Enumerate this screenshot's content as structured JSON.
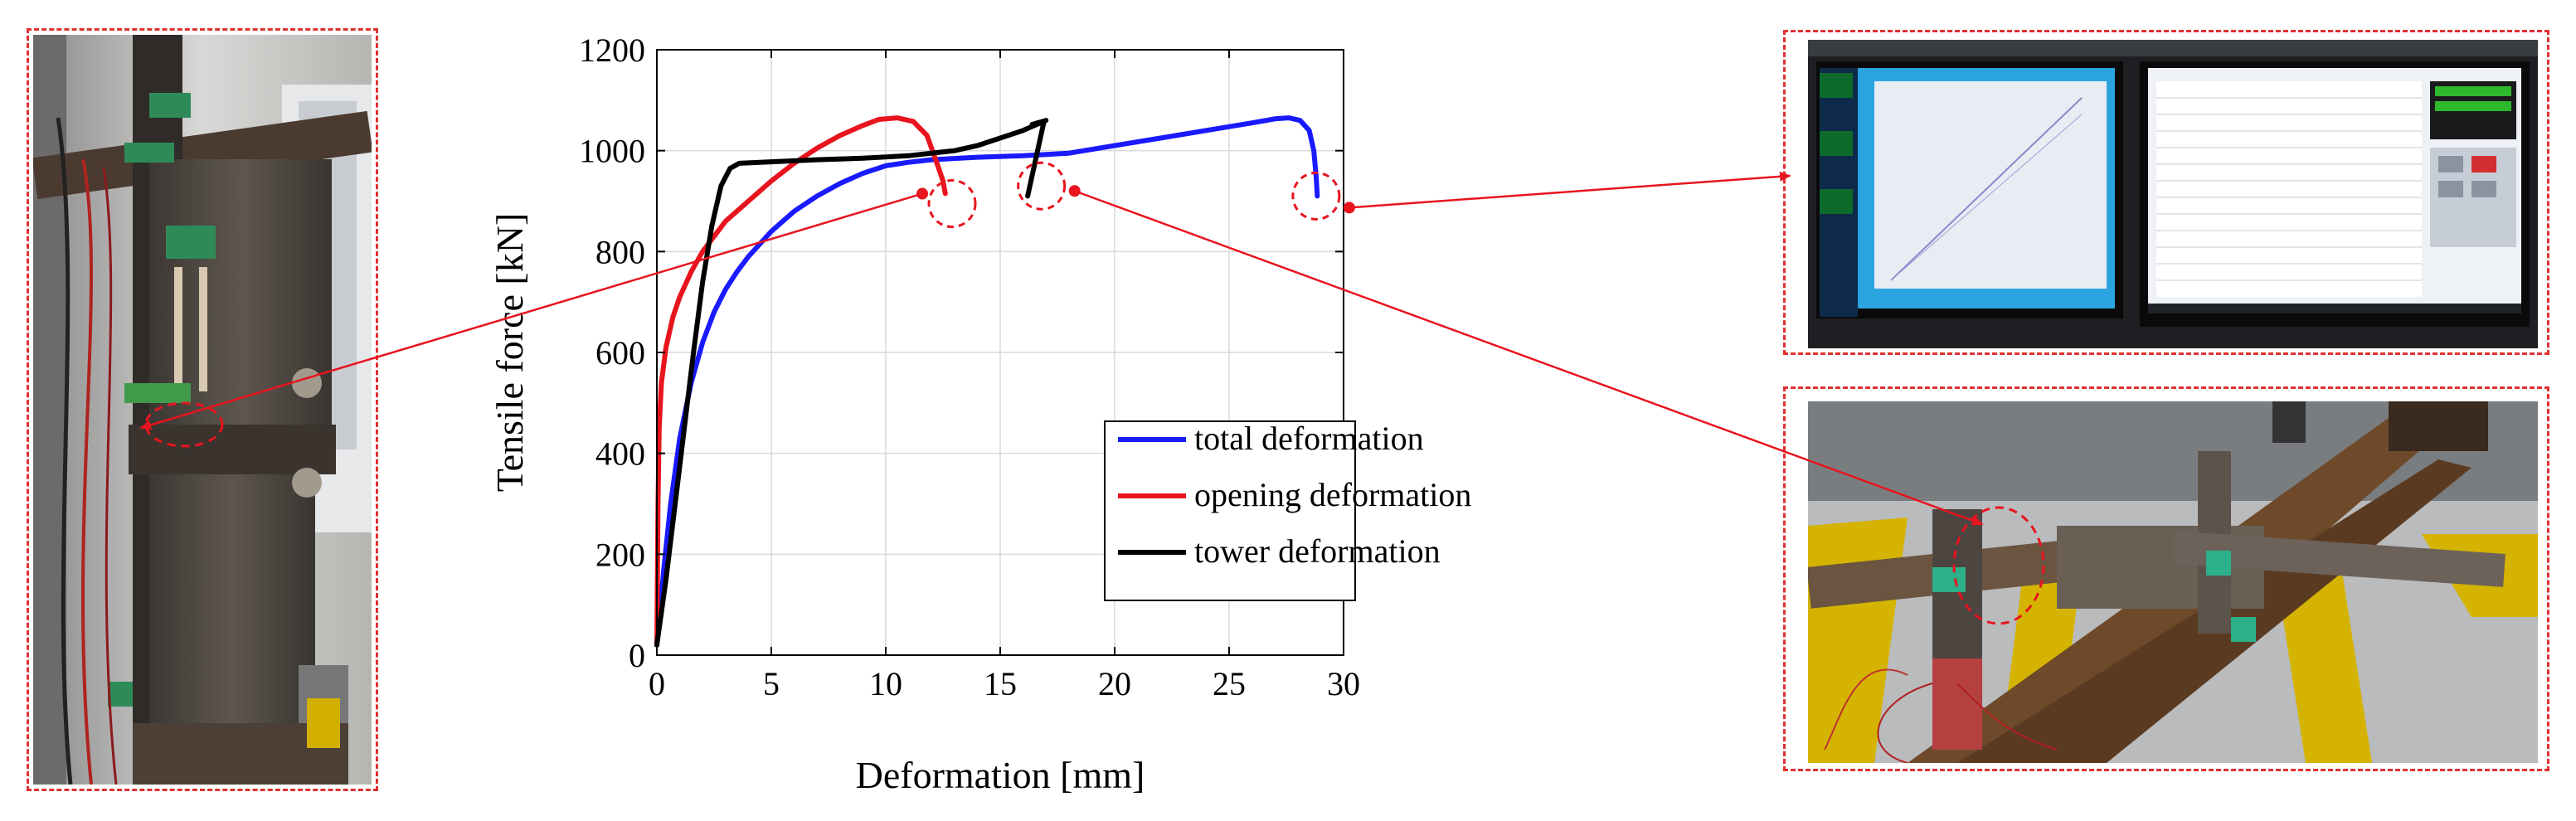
{
  "chart_data": {
    "type": "line",
    "xlabel": "Deformation [mm]",
    "ylabel": "Tensile force [kN]",
    "xlim": [
      0,
      30
    ],
    "ylim": [
      0,
      1200
    ],
    "xticks": [
      0,
      5,
      10,
      15,
      20,
      25,
      30
    ],
    "yticks": [
      0,
      200,
      400,
      600,
      800,
      1000,
      1200
    ],
    "grid": true,
    "legend_position": "bottom-right",
    "series": [
      {
        "name": "total deformation",
        "color": "#1a1aff",
        "x": [
          0,
          0.3,
          0.6,
          1,
          1.5,
          2,
          2.5,
          3,
          3.5,
          4,
          5,
          6,
          7,
          8,
          9,
          10,
          11,
          12,
          14,
          16,
          18,
          20,
          22,
          24,
          26,
          27,
          27.6,
          28.1,
          28.5,
          28.7,
          28.8,
          28.85
        ],
        "y": [
          20,
          170,
          300,
          430,
          540,
          620,
          680,
          725,
          760,
          790,
          840,
          880,
          910,
          935,
          955,
          970,
          977,
          982,
          987,
          990,
          995,
          1010,
          1025,
          1040,
          1055,
          1063,
          1065,
          1060,
          1040,
          1000,
          950,
          910
        ]
      },
      {
        "name": "opening deformation",
        "color": "#e8141e",
        "x": [
          0,
          0.05,
          0.1,
          0.2,
          0.4,
          0.7,
          1,
          1.5,
          2,
          3,
          4,
          5,
          6,
          7,
          8,
          9,
          9.7,
          10.5,
          11.2,
          11.8,
          12.2,
          12.5,
          12.6
        ],
        "y": [
          20,
          300,
          450,
          540,
          610,
          670,
          710,
          760,
          800,
          860,
          900,
          940,
          975,
          1005,
          1030,
          1050,
          1062,
          1065,
          1058,
          1030,
          980,
          940,
          915
        ]
      },
      {
        "name": "tower deformation",
        "color": "#000000",
        "x": [
          0,
          0.4,
          0.8,
          1.2,
          1.6,
          2,
          2.4,
          2.8,
          3.2,
          3.6,
          5,
          7,
          9,
          11,
          12,
          13,
          14,
          15,
          16,
          16.6,
          17,
          16.4,
          16.9,
          16.2
        ],
        "y": [
          20,
          150,
          300,
          450,
          600,
          740,
          850,
          930,
          965,
          975,
          978,
          982,
          985,
          990,
          995,
          1000,
          1010,
          1025,
          1040,
          1052,
          1060,
          1052,
          1055,
          910
        ]
      }
    ],
    "annotation_targets": [
      {
        "series": "opening deformation",
        "x": 12.9,
        "y": 895
      },
      {
        "series": "tower deformation",
        "x": 16.8,
        "y": 930
      },
      {
        "series": "total deformation",
        "x": 28.8,
        "y": 910
      }
    ]
  }
}
